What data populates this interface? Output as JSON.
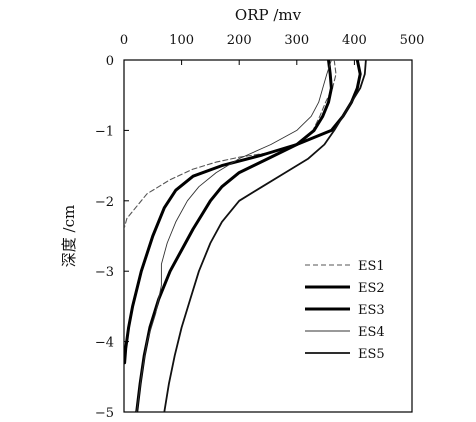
{
  "chart_data": {
    "type": "line",
    "title": "",
    "xlabel": "ORP /mv",
    "ylabel": "深度 /cm",
    "xlim": [
      0,
      500
    ],
    "ylim": [
      -5,
      0
    ],
    "x_ticks": [
      "0",
      "100",
      "200",
      "300",
      "400",
      "500"
    ],
    "y_ticks": [
      "0",
      "-1",
      "-2",
      "-3",
      "-4",
      "-5"
    ],
    "x_axis_position": "top",
    "grid": false,
    "legend_position": "bottom-right",
    "series": [
      {
        "name": "ES1",
        "style": "dashed",
        "x": [
          365,
          368,
          362,
          350,
          340,
          328,
          310,
          290,
          250,
          200,
          160,
          120,
          80,
          40,
          5,
          0
        ],
        "y": [
          0,
          -0.2,
          -0.4,
          -0.6,
          -0.8,
          -1.0,
          -1.15,
          -1.25,
          -1.32,
          -1.38,
          -1.45,
          -1.55,
          -1.7,
          -1.9,
          -2.25,
          -2.4
        ]
      },
      {
        "name": "ES2",
        "style": "bold",
        "x": [
          355,
          358,
          360,
          355,
          345,
          330,
          300,
          250,
          200,
          170,
          150,
          135,
          120,
          100,
          80,
          60,
          45,
          35,
          28,
          22
        ],
        "y": [
          0,
          -0.2,
          -0.4,
          -0.6,
          -0.8,
          -1.0,
          -1.2,
          -1.4,
          -1.6,
          -1.8,
          -2.0,
          -2.2,
          -2.4,
          -2.7,
          -3.0,
          -3.4,
          -3.8,
          -4.2,
          -4.6,
          -5.0
        ]
      },
      {
        "name": "ES3",
        "style": "bold",
        "x": [
          405,
          410,
          405,
          395,
          380,
          360,
          300,
          240,
          170,
          120,
          90,
          70,
          50,
          30,
          15,
          8,
          3,
          1
        ],
        "y": [
          0,
          -0.2,
          -0.4,
          -0.6,
          -0.8,
          -1.0,
          -1.2,
          -1.35,
          -1.5,
          -1.65,
          -1.85,
          -2.1,
          -2.5,
          -3.0,
          -3.5,
          -3.8,
          -4.1,
          -4.3
        ]
      },
      {
        "name": "ES4",
        "style": "thin",
        "x": [
          360,
          352,
          345,
          338,
          325,
          300,
          255,
          200,
          160,
          130,
          110,
          90,
          75,
          65,
          65,
          55,
          40,
          30,
          22
        ],
        "y": [
          0,
          -0.2,
          -0.4,
          -0.6,
          -0.8,
          -1.0,
          -1.2,
          -1.4,
          -1.6,
          -1.8,
          -2.0,
          -2.3,
          -2.6,
          -2.9,
          -3.2,
          -3.6,
          -4.0,
          -4.5,
          -5.0
        ]
      },
      {
        "name": "ES5",
        "style": "medium",
        "x": [
          420,
          418,
          410,
          395,
          380,
          365,
          348,
          320,
          280,
          240,
          200,
          170,
          150,
          130,
          115,
          100,
          88,
          78,
          70
        ],
        "y": [
          0,
          -0.2,
          -0.4,
          -0.6,
          -0.8,
          -1.0,
          -1.2,
          -1.4,
          -1.6,
          -1.8,
          -2.0,
          -2.3,
          -2.6,
          -3.0,
          -3.4,
          -3.8,
          -4.2,
          -4.6,
          -5.0
        ]
      }
    ]
  }
}
